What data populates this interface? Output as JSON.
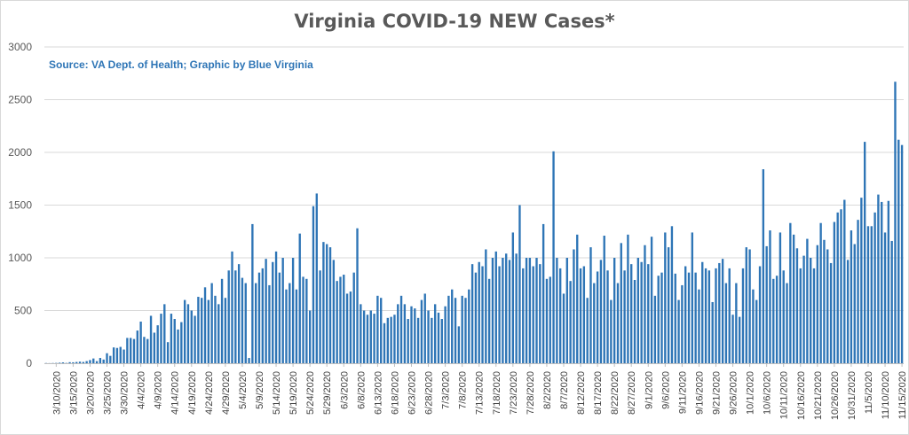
{
  "chart_data": {
    "type": "bar",
    "title": "Virginia COVID-19 NEW Cases*",
    "subtitle": "Source: VA Dept. of Health; Graphic by Blue Virginia",
    "xlabel": "",
    "ylabel": "",
    "ylim": [
      0,
      3000
    ],
    "yticks": [
      0,
      500,
      1000,
      1500,
      2000,
      2500,
      3000
    ],
    "grid": true,
    "legend": "none",
    "colors": {
      "bar": "#2e75b6",
      "grid": "#d9d9d9",
      "axis": "#bfbfbf"
    },
    "x_start": "3/7/2020",
    "x_tick_labels": [
      "3/10/2020",
      "3/15/2020",
      "3/20/2020",
      "3/25/2020",
      "3/30/2020",
      "4/4/2020",
      "4/9/2020",
      "4/14/2020",
      "4/19/2020",
      "4/24/2020",
      "4/29/2020",
      "5/4/2020",
      "5/9/2020",
      "5/14/2020",
      "5/19/2020",
      "5/24/2020",
      "5/29/2020",
      "6/3/2020",
      "6/8/2020",
      "6/13/2020",
      "6/18/2020",
      "6/23/2020",
      "6/28/2020",
      "7/3/2020",
      "7/8/2020",
      "7/13/2020",
      "7/18/2020",
      "7/23/2020",
      "7/28/2020",
      "8/2/2020",
      "8/7/2020",
      "8/12/2020",
      "8/17/2020",
      "8/22/2020",
      "8/27/2020",
      "9/1/2020",
      "9/6/2020",
      "9/11/2020",
      "9/16/2020",
      "9/21/2020",
      "9/26/2020",
      "10/1/2020",
      "10/6/2020",
      "10/11/2020",
      "10/16/2020",
      "10/21/2020",
      "10/26/2020",
      "10/31/2020",
      "11/5/2020",
      "11/10/2020",
      "11/15/2020"
    ],
    "values": [
      2,
      1,
      2,
      3,
      5,
      8,
      3,
      10,
      9,
      12,
      15,
      12,
      20,
      30,
      45,
      20,
      50,
      35,
      95,
      70,
      150,
      145,
      155,
      130,
      240,
      240,
      230,
      310,
      395,
      250,
      230,
      450,
      290,
      360,
      470,
      560,
      200,
      470,
      420,
      320,
      390,
      600,
      560,
      500,
      450,
      630,
      620,
      720,
      600,
      760,
      640,
      560,
      800,
      620,
      880,
      1060,
      880,
      940,
      810,
      760,
      50,
      1320,
      760,
      860,
      900,
      990,
      740,
      960,
      1060,
      860,
      1000,
      700,
      760,
      1000,
      700,
      1230,
      820,
      800,
      500,
      1490,
      1610,
      880,
      1150,
      1130,
      1100,
      980,
      780,
      820,
      840,
      660,
      680,
      860,
      1280,
      560,
      500,
      460,
      500,
      470,
      640,
      620,
      380,
      430,
      440,
      460,
      560,
      640,
      560,
      420,
      540,
      520,
      430,
      600,
      660,
      500,
      430,
      560,
      480,
      420,
      540,
      640,
      700,
      620,
      350,
      640,
      620,
      700,
      940,
      860,
      960,
      920,
      1080,
      800,
      1000,
      1060,
      920,
      1000,
      1040,
      980,
      1240,
      1040,
      1500,
      900,
      1000,
      1000,
      920,
      1000,
      940,
      1320,
      800,
      820,
      2010,
      1000,
      900,
      660,
      1000,
      780,
      1080,
      1220,
      900,
      920,
      620,
      1100,
      760,
      870,
      980,
      1210,
      880,
      600,
      1000,
      760,
      1140,
      880,
      1220,
      940,
      790,
      1000,
      960,
      1120,
      940,
      1200,
      640,
      830,
      860,
      1240,
      1100,
      1300,
      850,
      600,
      740,
      920,
      860,
      1240,
      860,
      700,
      960,
      900,
      880,
      580,
      900,
      950,
      990,
      760,
      900,
      460,
      760,
      440,
      900,
      1100,
      1080,
      700,
      600,
      920,
      1840,
      1110,
      1260,
      800,
      830,
      1240,
      880,
      760,
      1330,
      1220,
      1090,
      900,
      1020,
      1180,
      1000,
      900,
      1120,
      1330,
      1170,
      1080,
      950,
      1340,
      1430,
      1460,
      1550,
      980,
      1260,
      1130,
      1360,
      1570,
      2100,
      1300,
      1300,
      1430,
      1600,
      1530,
      1240,
      1540,
      1160,
      2670,
      2120,
      2070
    ]
  }
}
